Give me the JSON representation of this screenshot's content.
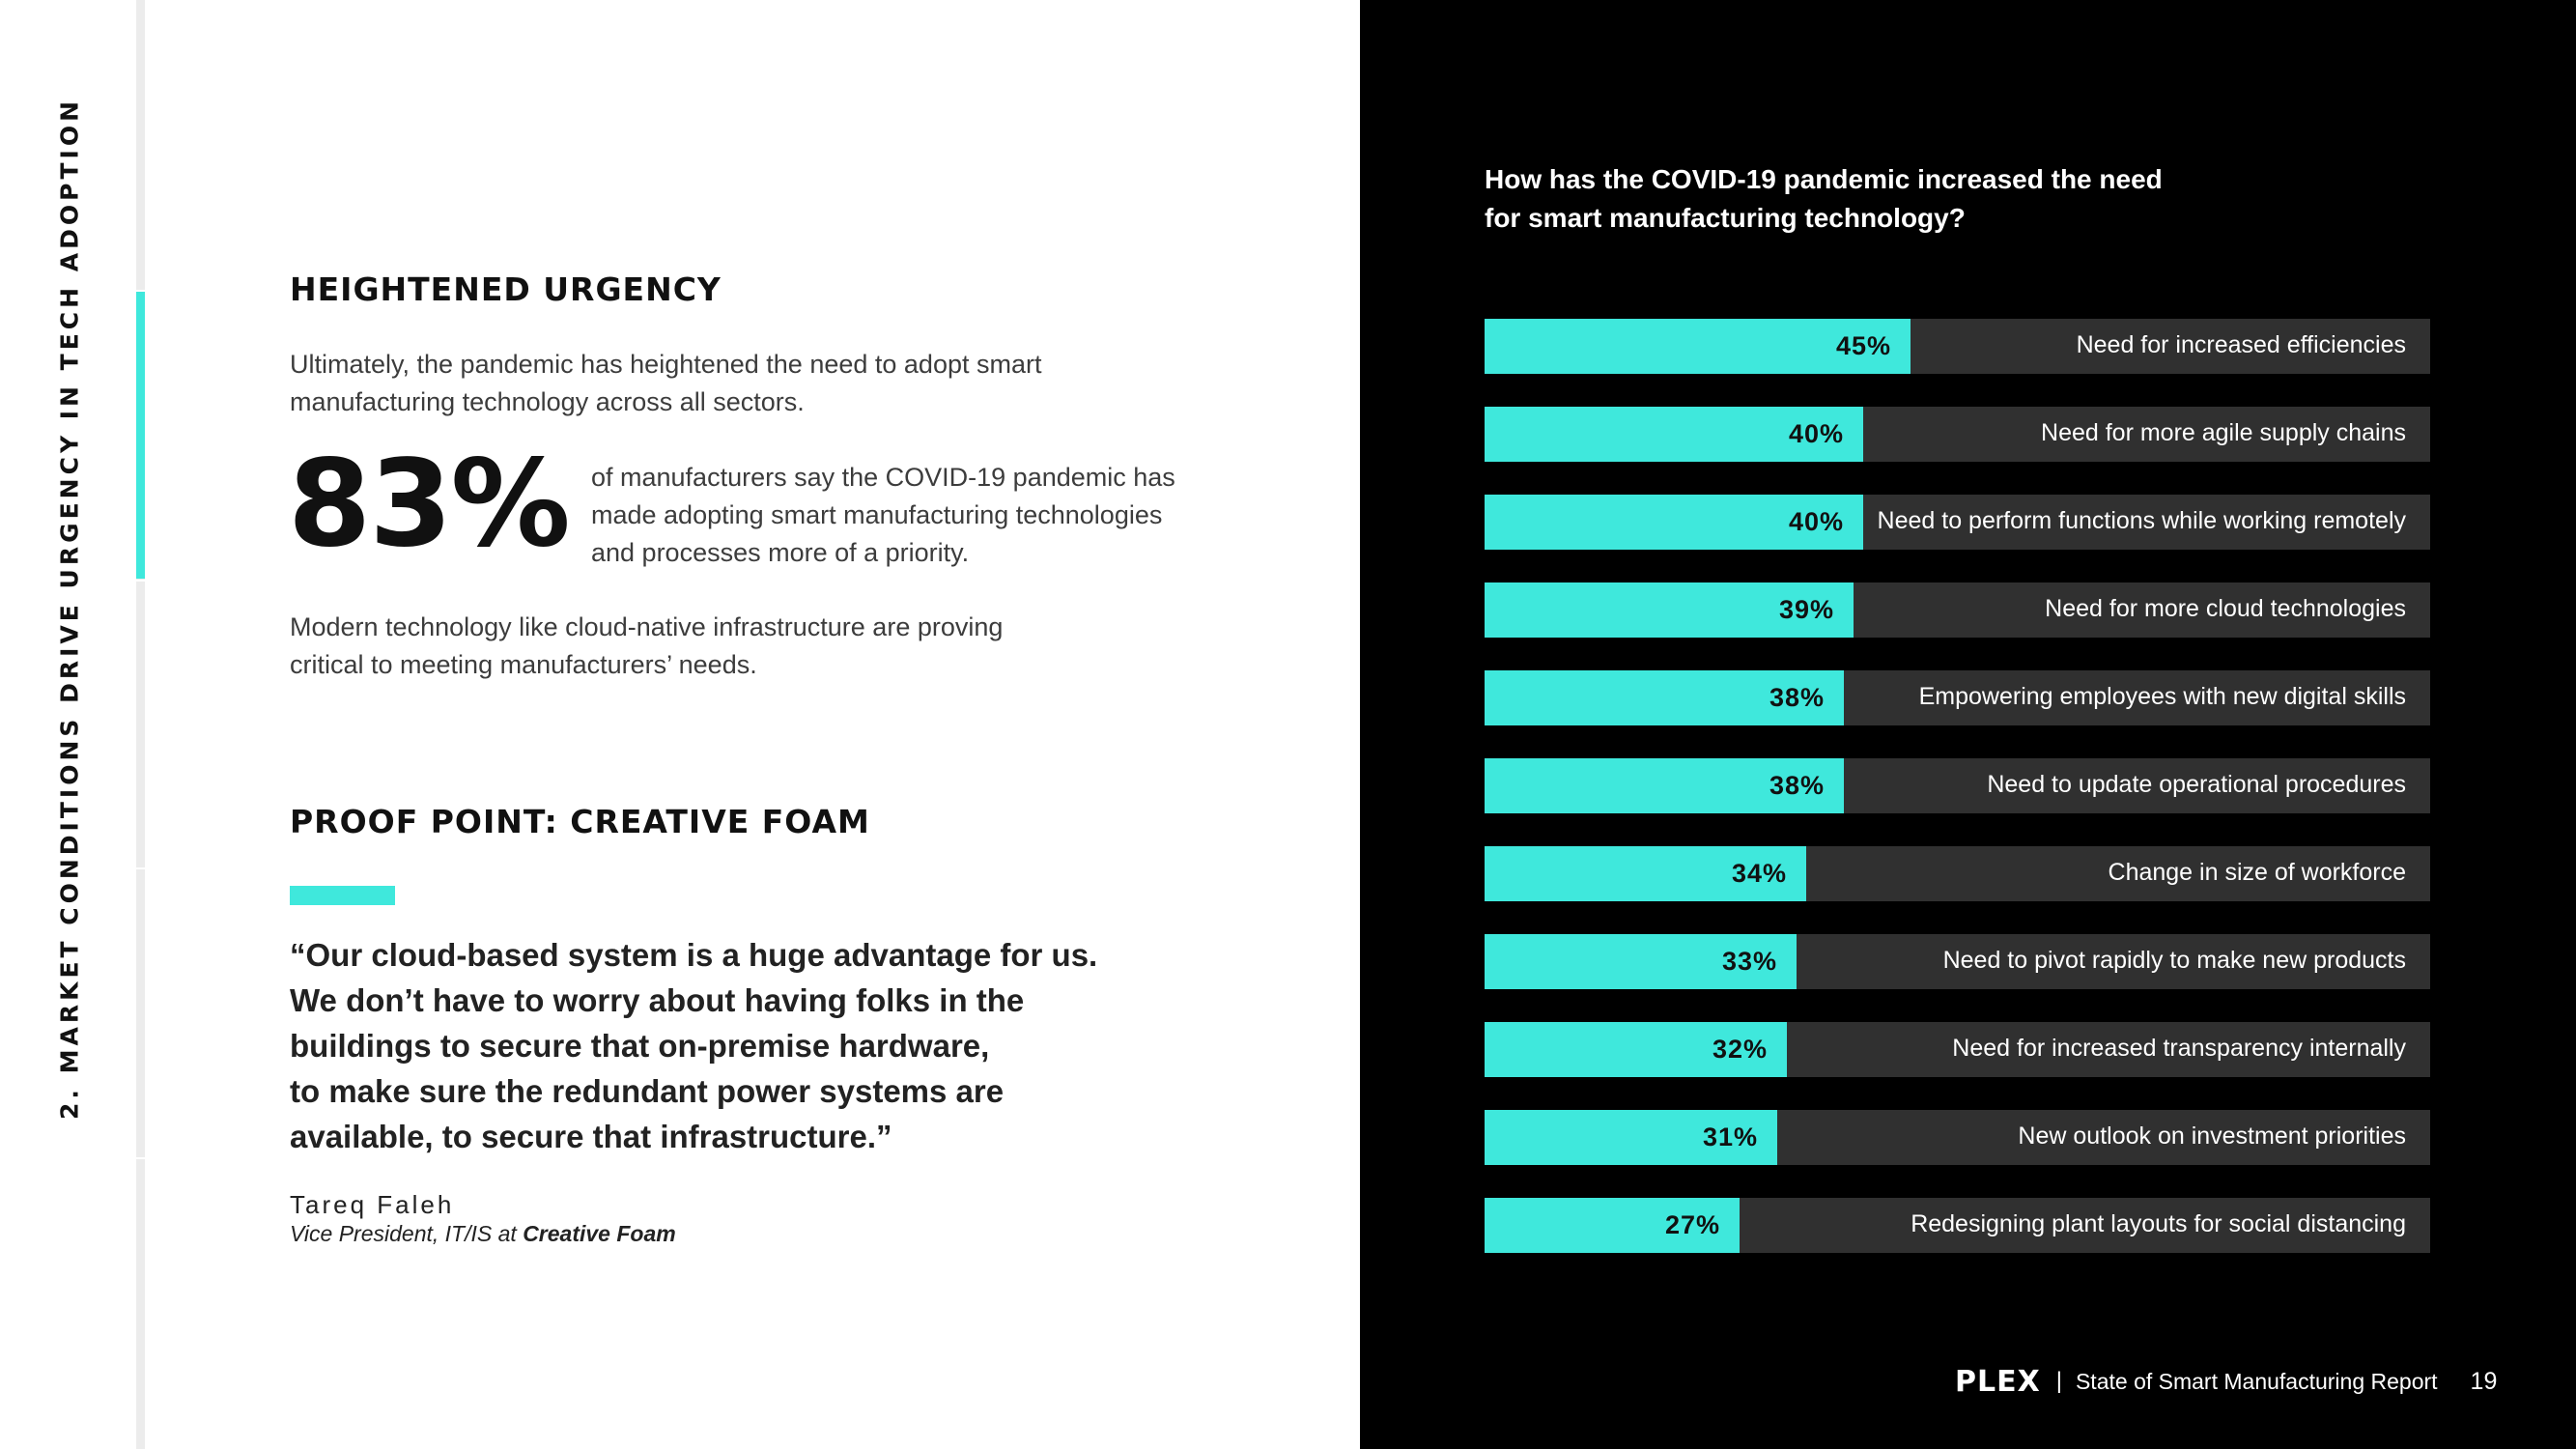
{
  "section_title": "2. MARKET CONDITIONS DRIVE URGENCY IN TECH ADOPTION",
  "urgency": {
    "heading": "HEIGHTENED URGENCY",
    "intro": "Ultimately, the pandemic has heightened the need to adopt smart manufacturing technology across all sectors.",
    "stat_value": "83%",
    "stat_text": "of manufacturers say the COVID-19 pandemic has made adopting smart manufacturing technologies and processes more of a priority.",
    "modern_text": "Modern technology like cloud-native infrastructure are proving critical to meeting manufacturers’ needs."
  },
  "proof": {
    "heading": "PROOF POINT: CREATIVE FOAM",
    "quote_lines": [
      "“Our cloud-based system is a huge advantage for us.",
      "We don’t have to worry about having folks in the",
      "buildings to secure that on-premise hardware,",
      "to make sure the redundant power systems are",
      "available, to secure that infrastructure.”"
    ],
    "author": "Tareq Faleh",
    "role_prefix": "Vice President, IT/IS at ",
    "company": "Creative Foam"
  },
  "colors": {
    "accent": "#3fe8dc",
    "bar_track": "#303030",
    "dark_bg": "#000000"
  },
  "chart_data": {
    "type": "bar",
    "orientation": "horizontal",
    "title": "How has the COVID-19 pandemic increased the need for smart manufacturing technology?",
    "categories": [
      "Need for increased efficiencies",
      "Need for more agile supply chains",
      "Need to perform functions while working remotely",
      "Need for more cloud technologies",
      "Empowering employees with new digital skills",
      "Need to update operational procedures",
      "Change in size of workforce",
      "Need to pivot rapidly to make new products",
      "Need for increased transparency internally",
      "New outlook on investment priorities",
      "Redesigning plant layouts for social distancing"
    ],
    "values": [
      45,
      40,
      40,
      39,
      38,
      38,
      34,
      33,
      32,
      31,
      27
    ],
    "value_labels": [
      "45%",
      "40%",
      "40%",
      "39%",
      "38%",
      "38%",
      "34%",
      "33%",
      "32%",
      "31%",
      "27%"
    ],
    "xlim": [
      0,
      100
    ],
    "xlabel": "",
    "ylabel": ""
  },
  "footer": {
    "logo": "PLEX",
    "separator": "|",
    "report_name": "State of Smart Manufacturing Report",
    "page_number": "19"
  }
}
